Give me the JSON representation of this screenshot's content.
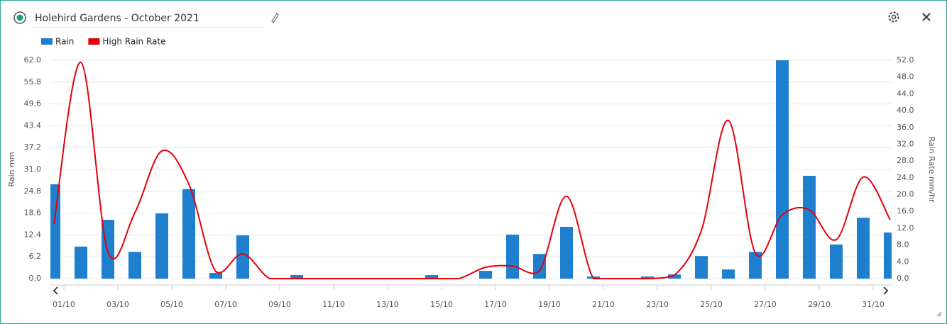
{
  "chart_data": {
    "type": "bar-line",
    "title": "Holehird Gardens - October 2021",
    "y_label": "Rain mm",
    "y2_label": "Rain Rate mm/hr",
    "legend": "top-left",
    "grid": true,
    "categories": [
      "01/10",
      null,
      "03/10",
      null,
      "05/10",
      null,
      "07/10",
      null,
      "09/10",
      null,
      "11/10",
      null,
      "13/10",
      null,
      "15/10",
      null,
      "17/10",
      null,
      "19/10",
      null,
      "21/10",
      null,
      "23/10",
      null,
      "25/10",
      null,
      "27/10",
      null,
      "29/10",
      null,
      "31/10",
      null
    ],
    "series": [
      {
        "name": "Rain",
        "type": "bar",
        "color": "#1f7fcf",
        "values": [
          26.8,
          9.1,
          16.7,
          7.6,
          18.5,
          25.4,
          1.6,
          12.3,
          0,
          1.0,
          0,
          0,
          0,
          0,
          1.0,
          0,
          2.2,
          12.5,
          7.0,
          14.7,
          0.6,
          0,
          0.6,
          1.2,
          6.4,
          2.6,
          7.6,
          62.0,
          29.2,
          9.7,
          17.3,
          13.1
        ]
      },
      {
        "name": "High Rain Rate",
        "type": "line",
        "axis": "y2",
        "color": "#e5000b",
        "values": [
          13.0,
          51.5,
          6.4,
          15.7,
          30.4,
          22.5,
          1.7,
          5.9,
          0,
          0,
          0,
          0,
          0,
          0,
          0,
          0,
          2.7,
          3.0,
          1.9,
          19.6,
          0,
          0,
          0,
          0.8,
          11.5,
          37.7,
          6.1,
          15.2,
          16.4,
          9.3,
          24.2,
          14.0
        ]
      }
    ],
    "ylim": [
      0,
      62
    ],
    "yticks": [
      {
        "value": 0,
        "label": "0.0"
      },
      6.2,
      12.4,
      18.6,
      24.8,
      {
        "value": 31,
        "label": "31.0"
      },
      37.2,
      43.4,
      49.6,
      55.8,
      {
        "value": 62,
        "label": "62.0"
      }
    ],
    "y2lim": [
      0,
      52
    ],
    "y2ticks": [
      {
        "value": 0,
        "label": "0.0"
      },
      {
        "value": 4,
        "label": "4.0"
      },
      {
        "value": 8,
        "label": "8.0"
      },
      {
        "value": 12,
        "label": "12.0"
      },
      {
        "value": 16,
        "label": "16.0"
      },
      {
        "value": 20,
        "label": "20.0"
      },
      {
        "value": 24,
        "label": "24.0"
      },
      {
        "value": 28,
        "label": "28.0"
      },
      {
        "value": 32,
        "label": "32.0"
      },
      {
        "value": 36,
        "label": "36.0"
      },
      {
        "value": 40,
        "label": "40.0"
      },
      {
        "value": 44,
        "label": "44.0"
      },
      {
        "value": 48,
        "label": "48.0"
      },
      {
        "value": 52,
        "label": "52.0"
      }
    ]
  }
}
